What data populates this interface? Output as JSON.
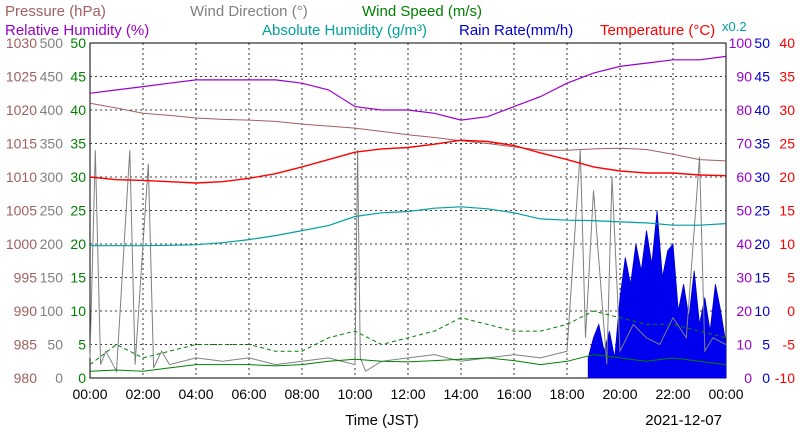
{
  "chart_data": {
    "type": "line",
    "legend": [
      {
        "name": "Pressure (hPa)",
        "color": "#a06060"
      },
      {
        "name": "Wind Direction (°)",
        "color": "#808080"
      },
      {
        "name": "Wind Speed (m/s)",
        "color": "#008000"
      },
      {
        "name": "Relative Humidity (%)",
        "color": "#9900cc"
      },
      {
        "name": "Absolute Humidity (g/m³)",
        "color": "#00a0a0"
      },
      {
        "name": "Rain Rate(mm/h)",
        "color": "#0000cc"
      },
      {
        "name": "Temperature (°C)",
        "color": "#ff0000"
      }
    ],
    "abs_humidity_scale_note": "x0.2",
    "xlabel": "Time (JST)",
    "date_label": "2021-12-07",
    "x_ticks": [
      "00:00",
      "02:00",
      "04:00",
      "06:00",
      "08:00",
      "10:00",
      "12:00",
      "14:00",
      "16:00",
      "18:00",
      "20:00",
      "22:00",
      "00:00"
    ],
    "axes": {
      "pressure": {
        "range": [
          980,
          1030
        ],
        "ticks": [
          "980",
          "985",
          "990",
          "995",
          "1000",
          "1005",
          "1010",
          "1015",
          "1020",
          "1025",
          "1030"
        ],
        "color": "#a06060"
      },
      "wind_direction": {
        "range": [
          0,
          500
        ],
        "ticks": [
          "0",
          "50",
          "100",
          "150",
          "200",
          "250",
          "300",
          "350",
          "400",
          "450",
          "500"
        ],
        "color": "#808080"
      },
      "wind_speed": {
        "range": [
          0,
          50
        ],
        "ticks": [
          "0",
          "5",
          "10",
          "15",
          "20",
          "25",
          "30",
          "35",
          "40",
          "45",
          "50"
        ],
        "color": "#008000"
      },
      "relative_humidity": {
        "range": [
          0,
          100
        ],
        "ticks": [
          "0",
          "10",
          "20",
          "30",
          "40",
          "50",
          "60",
          "70",
          "80",
          "90",
          "100"
        ],
        "color": "#9900cc"
      },
      "rain_rate": {
        "range": [
          0,
          50
        ],
        "ticks": [
          "0",
          "5",
          "10",
          "15",
          "20",
          "25",
          "30",
          "35",
          "40",
          "45",
          "50"
        ],
        "color": "#0000cc"
      },
      "temperature": {
        "range": [
          -10,
          40
        ],
        "ticks": [
          "-10",
          "-5",
          "0",
          "5",
          "10",
          "15",
          "20",
          "25",
          "30",
          "35",
          "40"
        ],
        "color": "#ff0000"
      }
    },
    "grid": true,
    "series": [
      {
        "key": "pressure",
        "hours": [
          0,
          1,
          2,
          3,
          4,
          5,
          6,
          7,
          8,
          9,
          10,
          11,
          12,
          13,
          14,
          15,
          16,
          17,
          18,
          19,
          20,
          21,
          22,
          23,
          24
        ],
        "values": [
          1021,
          1020.3,
          1019.5,
          1019.2,
          1018.8,
          1018.6,
          1018.5,
          1018.3,
          1017.9,
          1017.6,
          1017.3,
          1016.8,
          1016.3,
          1015.9,
          1015.4,
          1015,
          1014.5,
          1014,
          1014,
          1014.2,
          1014.3,
          1014.1,
          1013.4,
          1012.6,
          1012.4
        ]
      },
      {
        "key": "relative_humidity",
        "hours": [
          0,
          1,
          2,
          3,
          4,
          5,
          6,
          7,
          8,
          9,
          10,
          11,
          12,
          13,
          14,
          15,
          16,
          17,
          18,
          19,
          20,
          21,
          22,
          23,
          24
        ],
        "values": [
          85,
          86,
          87,
          88,
          89,
          89,
          89,
          89,
          88,
          86,
          81,
          80,
          80,
          79,
          77,
          78,
          81,
          84,
          88,
          91,
          93,
          94,
          95,
          95,
          96
        ]
      },
      {
        "key": "temperature",
        "hours": [
          0,
          1,
          2,
          3,
          4,
          5,
          6,
          7,
          8,
          9,
          10,
          11,
          12,
          13,
          14,
          15,
          16,
          17,
          18,
          19,
          20,
          21,
          22,
          23,
          24
        ],
        "values": [
          20,
          19.6,
          19.5,
          19.3,
          19.1,
          19.3,
          19.8,
          20.5,
          21.5,
          22.6,
          23.7,
          24.2,
          24.4,
          24.9,
          25.5,
          25.3,
          24.7,
          23.6,
          22.6,
          21.5,
          20.9,
          20.6,
          20.6,
          20.3,
          20.2
        ]
      },
      {
        "key": "absolute_humidity",
        "hours": [
          0,
          1,
          2,
          3,
          4,
          5,
          6,
          7,
          8,
          9,
          10,
          11,
          12,
          13,
          14,
          15,
          16,
          17,
          18,
          19,
          20,
          21,
          22,
          23,
          24
        ],
        "values": [
          39.5,
          39.5,
          39.5,
          39.6,
          39.8,
          40.4,
          41.3,
          42.5,
          44,
          45.5,
          48.2,
          49.3,
          49.7,
          50.7,
          51.1,
          50.5,
          49.3,
          47.5,
          47.1,
          47,
          46.6,
          46.3,
          45.6,
          45.6,
          46.1
        ]
      },
      {
        "key": "wind_speed",
        "hours": [
          0,
          1,
          2,
          3,
          4,
          5,
          6,
          7,
          8,
          9,
          10,
          11,
          12,
          13,
          14,
          15,
          16,
          17,
          18,
          19,
          20,
          21,
          22,
          23,
          24
        ],
        "values": [
          1,
          1.2,
          1,
          1.5,
          2,
          2,
          2,
          1.8,
          2,
          2.5,
          2.8,
          2.5,
          2.4,
          2.6,
          2.8,
          3,
          2.6,
          2,
          2.5,
          3.5,
          3,
          2.5,
          3,
          2.5,
          2
        ]
      },
      {
        "key": "wind_speed_gust",
        "hours": [
          0,
          1,
          2,
          3,
          4,
          5,
          6,
          7,
          8,
          9,
          10,
          11,
          12,
          13,
          14,
          15,
          16,
          17,
          18,
          19,
          20,
          21,
          22,
          23,
          24
        ],
        "values": [
          2,
          5,
          3,
          4,
          5,
          5,
          5,
          4,
          4,
          6,
          7,
          5,
          6,
          7,
          9,
          8,
          7,
          7,
          8,
          10,
          9,
          8,
          8,
          7,
          6
        ]
      },
      {
        "key": "wind_direction",
        "hours": [
          0,
          0.2,
          0.4,
          0.6,
          1,
          1.5,
          1.7,
          2.2,
          2.4,
          2.7,
          3,
          4,
          5,
          6,
          7,
          8,
          9,
          10,
          10.1,
          10.2,
          10.4,
          11,
          12,
          13,
          14,
          15,
          16,
          17,
          18,
          18.5,
          18.7,
          19,
          19.5,
          19.7,
          20,
          20.5,
          21,
          21.5,
          22,
          22.5,
          23,
          23.2,
          23.5,
          24
        ],
        "values": [
          30,
          340,
          20,
          40,
          10,
          340,
          20,
          320,
          15,
          40,
          20,
          30,
          25,
          30,
          20,
          25,
          30,
          20,
          340,
          30,
          10,
          25,
          30,
          35,
          25,
          30,
          35,
          30,
          40,
          340,
          60,
          280,
          20,
          300,
          40,
          80,
          60,
          50,
          90,
          60,
          330,
          40,
          60,
          50
        ]
      },
      {
        "key": "rain_rate",
        "hours": [
          18.8,
          19,
          19.2,
          19.4,
          19.6,
          19.8,
          20,
          20.2,
          20.4,
          20.6,
          20.8,
          21,
          21.2,
          21.4,
          21.6,
          21.8,
          22,
          22.2,
          22.4,
          22.6,
          22.8,
          23,
          23.2,
          23.4,
          23.6,
          23.8,
          24
        ],
        "values": [
          3,
          6,
          8,
          4,
          7,
          3,
          12,
          18,
          14,
          20,
          16,
          22,
          17,
          25,
          15,
          19,
          20,
          10,
          14,
          9,
          16,
          8,
          12,
          7,
          14,
          10,
          5
        ]
      }
    ]
  }
}
